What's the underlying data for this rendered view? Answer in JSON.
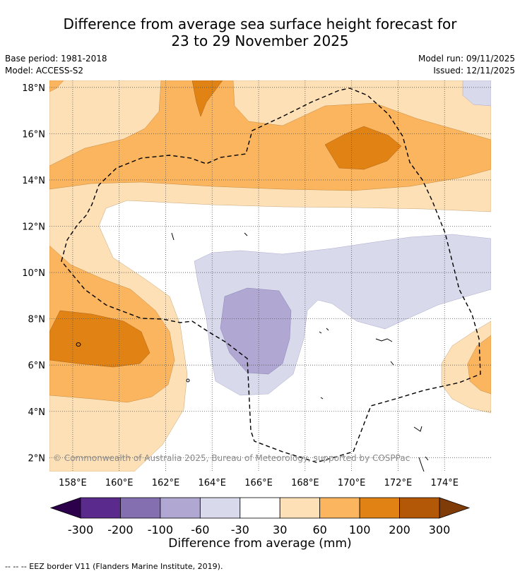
{
  "title": {
    "line1": "Difference from average sea surface height forecast for",
    "line2": "23 to 29 November 2025"
  },
  "meta": {
    "base_period": "Base period: 1981-2018",
    "model": "Model: ACCESS-S2",
    "model_run": "Model run: 09/11/2025",
    "issued": "Issued: 12/11/2025"
  },
  "map": {
    "lon_range": [
      157,
      176
    ],
    "lat_range": [
      1.4,
      18.3
    ],
    "lon_ticks": [
      "158°E",
      "160°E",
      "162°E",
      "164°E",
      "166°E",
      "168°E",
      "170°E",
      "172°E",
      "174°E"
    ],
    "lat_ticks": [
      "18°N",
      "16°N",
      "14°N",
      "12°N",
      "10°N",
      "8°N",
      "6°N",
      "4°N",
      "2°N"
    ],
    "copyright": "© Commonwealth of Australia 2025, Bureau of Meteorology, supported by COSPPac"
  },
  "colorbar": {
    "ticks": [
      "-300",
      "-200",
      "-100",
      "-60",
      "-30",
      "30",
      "60",
      "100",
      "200",
      "300"
    ],
    "colors": [
      "#5a2a8c",
      "#8470b0",
      "#b0a8d2",
      "#d9d9ec",
      "#ffffff",
      "#fee0b6",
      "#fbb55e",
      "#e08214",
      "#b35806"
    ],
    "extend_low": "#2d004b",
    "extend_high": "#7f3b08",
    "label": "Difference from average (mm)"
  },
  "footnote": "--  --  -- EEZ border V11 (Flanders Marine Institute, 2019)."
}
